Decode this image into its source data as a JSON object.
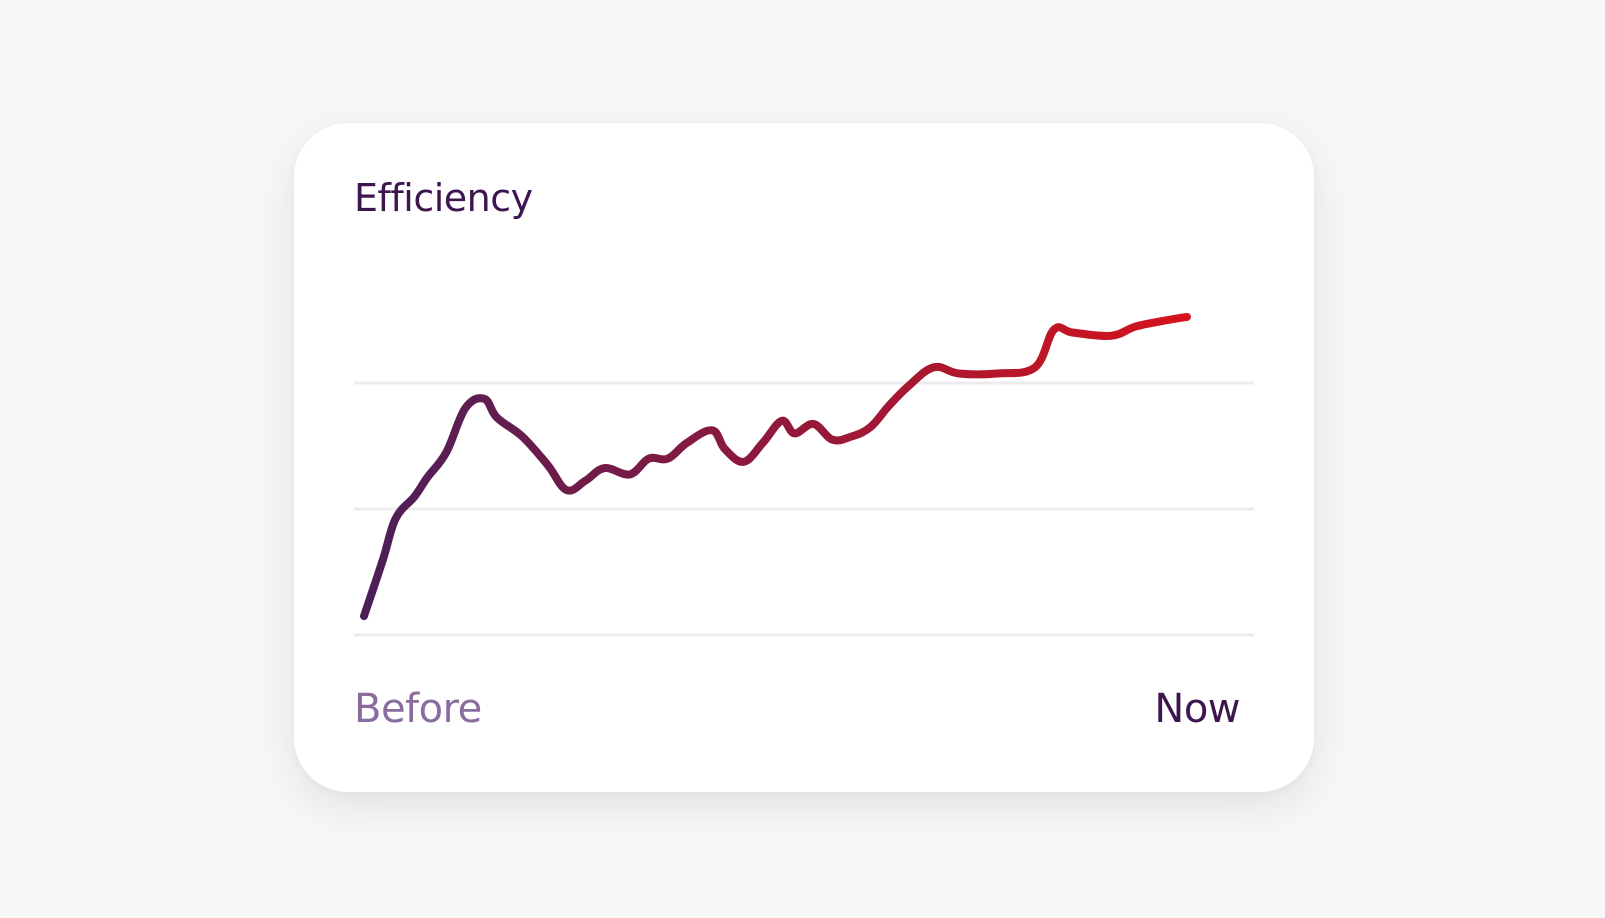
{
  "colors": {
    "background": "#f7f7f7",
    "card": "#ffffff",
    "title": "#3d1650",
    "before": "#8b6c9e",
    "now": "#3d1650",
    "grid": "#ececef",
    "line_start": "#4a1f5a",
    "line_end": "#e11218"
  },
  "card": {
    "title": "Efficiency",
    "before_label": "Before",
    "now_label": "Now"
  },
  "chart_data": {
    "type": "line",
    "title": "Efficiency",
    "xlabel": "",
    "ylabel": "",
    "x_start_label": "Before",
    "x_end_label": "Now",
    "ylim": [
      0,
      12
    ],
    "gridlines": [
      0,
      4,
      8
    ],
    "grid": true,
    "legend": "none",
    "series": [
      {
        "values": [
          [
            0.0,
            0.6
          ],
          [
            1.5,
            2.4
          ],
          [
            2.5,
            3.7
          ],
          [
            4.0,
            4.4
          ],
          [
            5.0,
            5.0
          ],
          [
            6.5,
            5.8
          ],
          [
            8.0,
            7.2
          ],
          [
            9.5,
            7.5
          ],
          [
            10.5,
            6.9
          ],
          [
            12.5,
            6.3
          ],
          [
            14.5,
            5.4
          ],
          [
            16.0,
            4.6
          ],
          [
            17.5,
            4.9
          ],
          [
            19.0,
            5.3
          ],
          [
            21.0,
            5.1
          ],
          [
            22.5,
            5.6
          ],
          [
            24.0,
            5.6
          ],
          [
            25.5,
            6.1
          ],
          [
            27.5,
            6.5
          ],
          [
            28.5,
            5.9
          ],
          [
            30.0,
            5.5
          ],
          [
            31.5,
            6.1
          ],
          [
            33.0,
            6.8
          ],
          [
            34.0,
            6.4
          ],
          [
            35.5,
            6.7
          ],
          [
            37.0,
            6.2
          ],
          [
            38.5,
            6.3
          ],
          [
            40.0,
            6.6
          ],
          [
            41.5,
            7.3
          ],
          [
            43.0,
            7.9
          ],
          [
            45.0,
            8.5
          ],
          [
            47.0,
            8.3
          ],
          [
            50.0,
            8.3
          ],
          [
            53.0,
            8.5
          ],
          [
            54.5,
            9.7
          ],
          [
            56.0,
            9.6
          ],
          [
            59.0,
            9.5
          ],
          [
            61.0,
            9.8
          ],
          [
            63.5,
            10.0
          ],
          [
            65.0,
            10.1
          ]
        ]
      }
    ]
  }
}
